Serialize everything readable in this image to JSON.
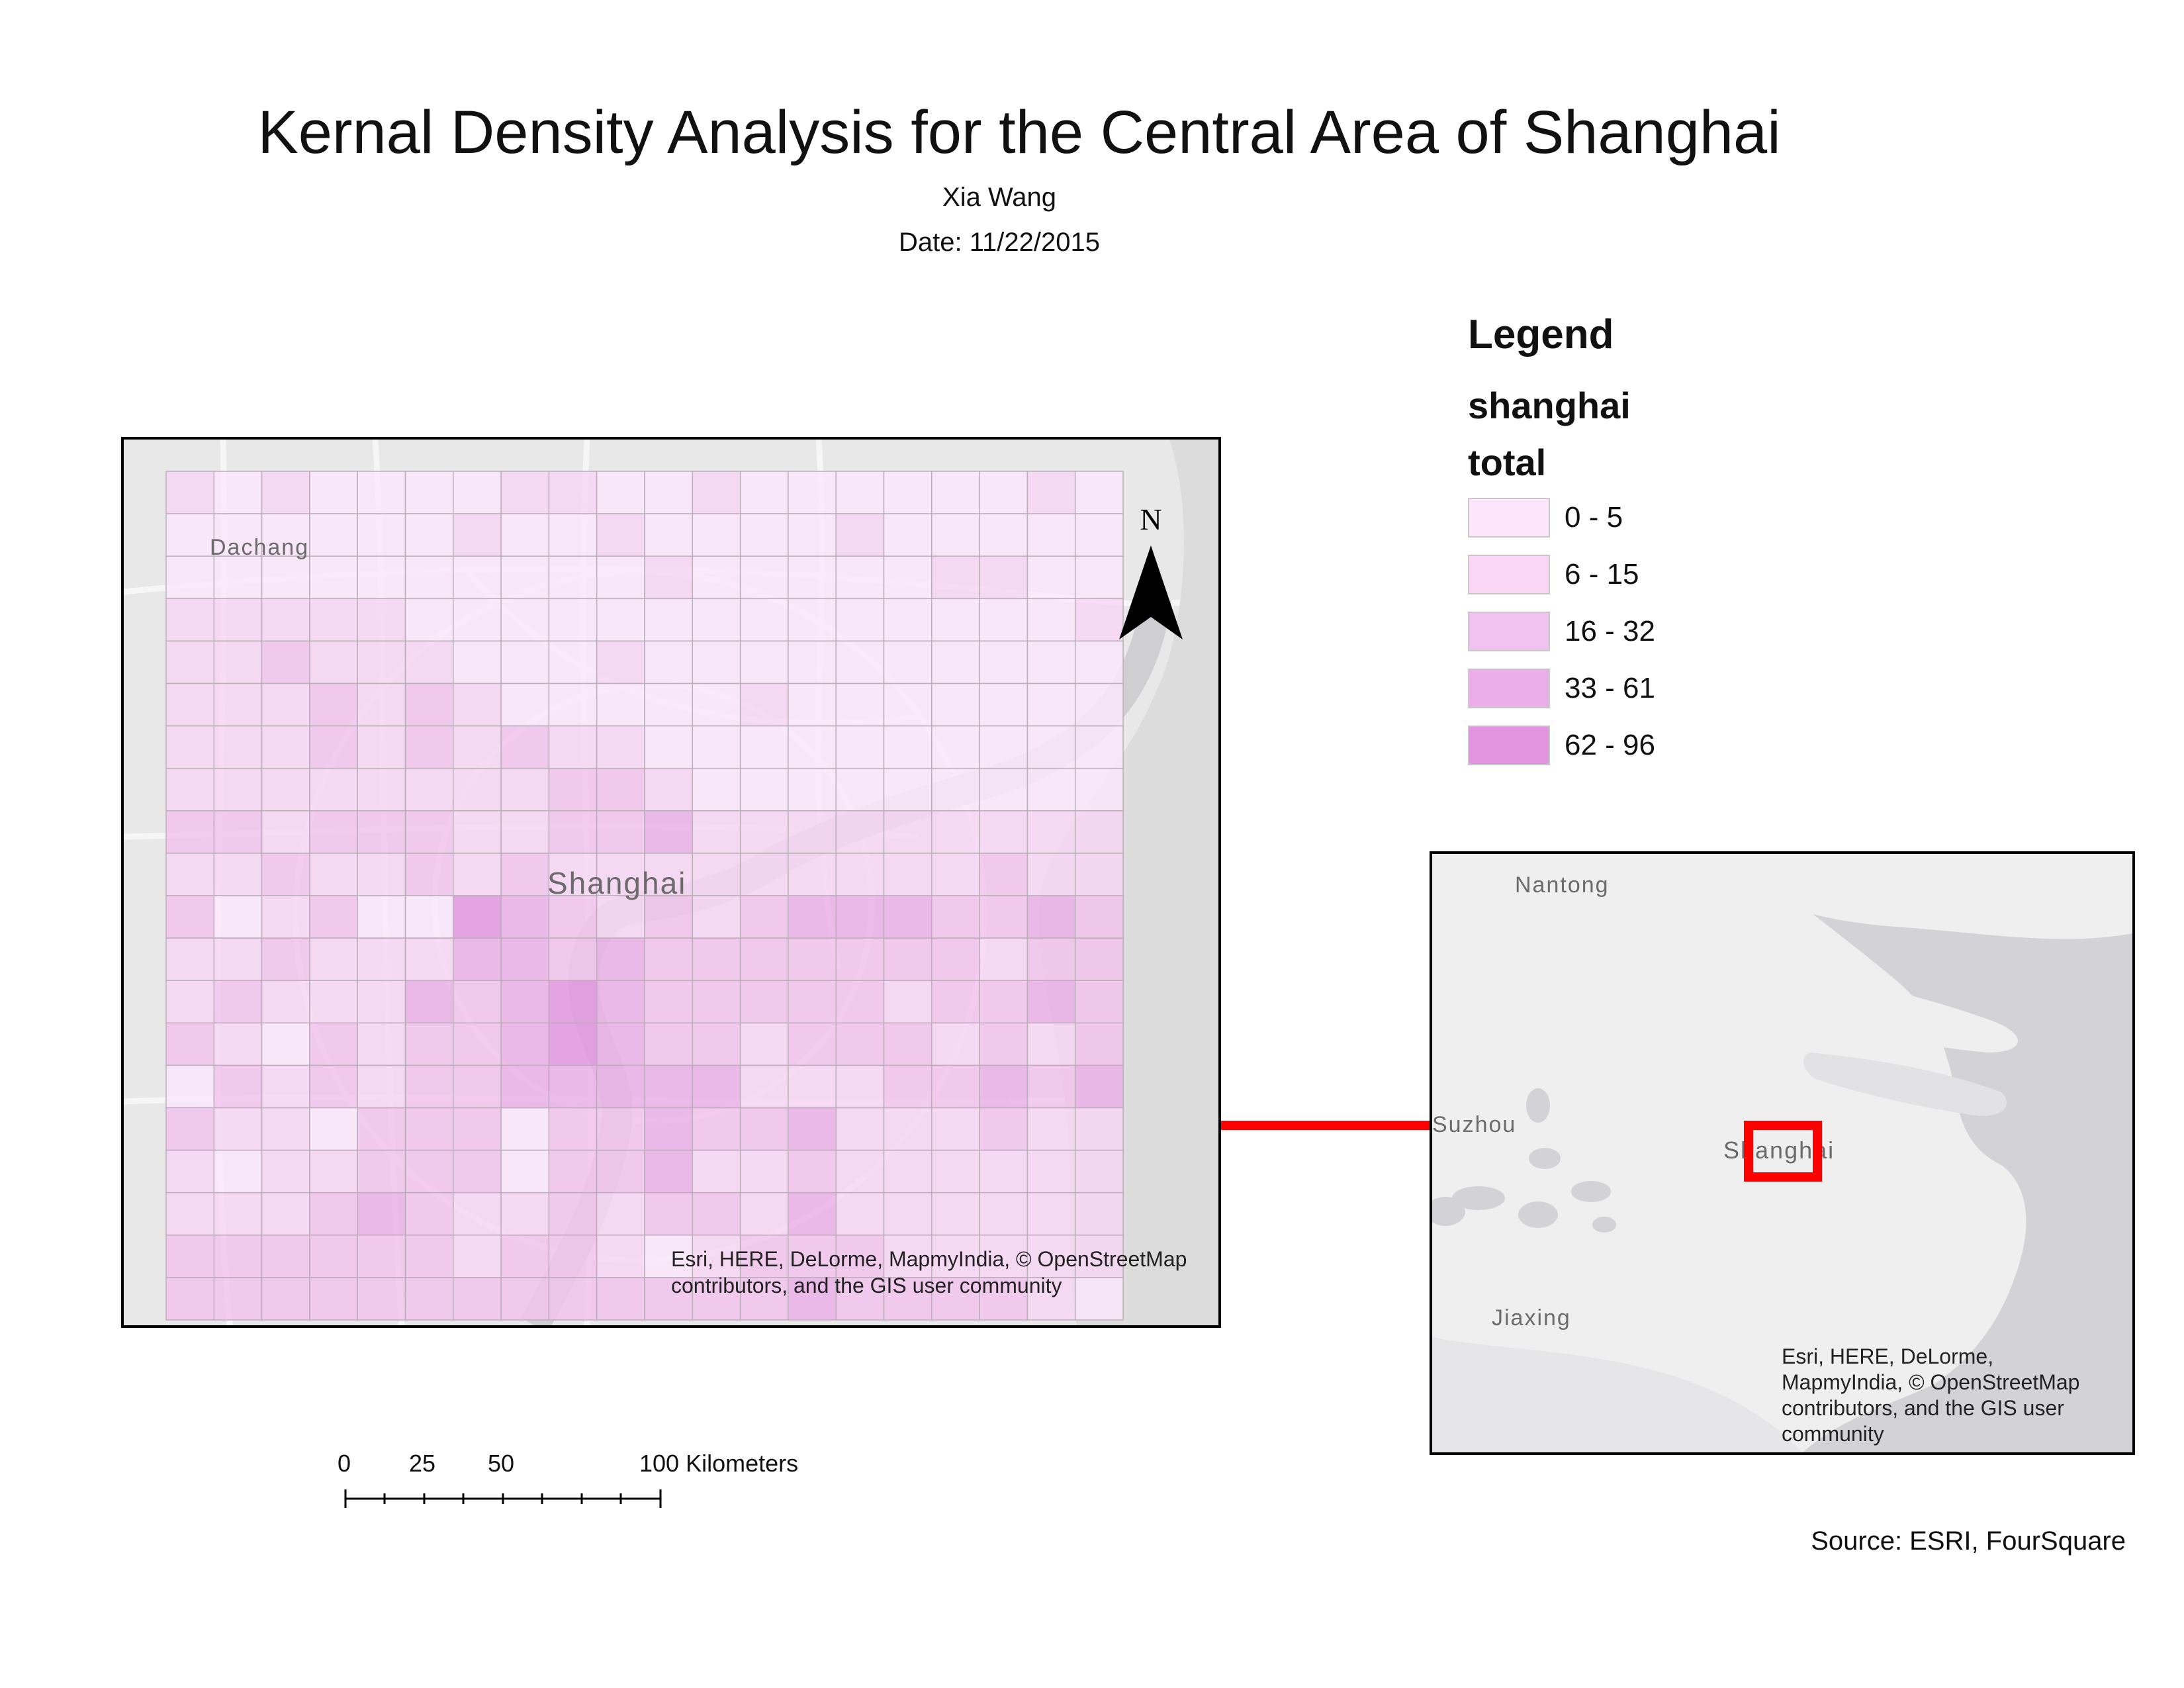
{
  "header": {
    "title": "Kernal Density Analysis for the Central Area of Shanghai",
    "author": "Xia Wang",
    "date": "Date: 11/22/2015"
  },
  "legend": {
    "title": "Legend",
    "layer": "shanghai",
    "field": "total",
    "classes": [
      {
        "label": "0 - 5",
        "color": "#fbe6fb"
      },
      {
        "label": "6 - 15",
        "color": "#f8d6f4"
      },
      {
        "label": "16 - 32",
        "color": "#f2c2ee"
      },
      {
        "label": "33 - 61",
        "color": "#ecaee8"
      },
      {
        "label": "62 - 96",
        "color": "#e394e1"
      }
    ]
  },
  "main_map": {
    "place_labels": [
      "Dachang",
      "Shanghai"
    ],
    "north_arrow": "N",
    "credit_line1": "Esri, HERE, DeLorme, MapmyIndia, © OpenStreetMap",
    "credit_line2": "contributors, and the GIS user community",
    "grid_classes": [
      [
        1,
        0,
        1,
        0,
        0,
        0,
        0,
        1,
        1,
        0,
        0,
        1,
        0,
        0,
        0,
        0,
        0,
        0,
        1,
        0
      ],
      [
        0,
        0,
        0,
        0,
        0,
        0,
        1,
        0,
        0,
        1,
        0,
        0,
        0,
        0,
        1,
        0,
        0,
        0,
        0,
        0
      ],
      [
        0,
        0,
        0,
        0,
        0,
        0,
        0,
        0,
        0,
        0,
        1,
        0,
        0,
        0,
        0,
        0,
        1,
        1,
        0,
        0
      ],
      [
        1,
        1,
        1,
        1,
        1,
        0,
        0,
        0,
        0,
        0,
        0,
        0,
        0,
        0,
        0,
        0,
        0,
        0,
        0,
        1
      ],
      [
        1,
        1,
        2,
        1,
        1,
        1,
        0,
        0,
        0,
        1,
        0,
        0,
        0,
        0,
        0,
        0,
        0,
        0,
        0,
        0
      ],
      [
        1,
        1,
        1,
        2,
        1,
        2,
        1,
        0,
        0,
        0,
        0,
        0,
        1,
        0,
        0,
        0,
        0,
        0,
        0,
        0
      ],
      [
        1,
        1,
        1,
        2,
        1,
        2,
        1,
        2,
        1,
        1,
        0,
        0,
        0,
        0,
        0,
        0,
        0,
        0,
        0,
        0
      ],
      [
        1,
        1,
        1,
        1,
        1,
        1,
        1,
        1,
        2,
        2,
        1,
        0,
        0,
        0,
        0,
        0,
        0,
        0,
        0,
        0
      ],
      [
        2,
        2,
        1,
        2,
        2,
        2,
        1,
        1,
        2,
        2,
        3,
        1,
        1,
        1,
        1,
        1,
        1,
        1,
        1,
        1
      ],
      [
        1,
        1,
        2,
        1,
        1,
        2,
        1,
        2,
        1,
        1,
        1,
        1,
        1,
        1,
        1,
        1,
        1,
        2,
        1,
        1
      ],
      [
        2,
        0,
        1,
        2,
        0,
        0,
        4,
        3,
        2,
        1,
        2,
        1,
        2,
        3,
        3,
        3,
        2,
        2,
        3,
        2
      ],
      [
        1,
        1,
        2,
        1,
        1,
        1,
        3,
        3,
        2,
        3,
        2,
        2,
        2,
        2,
        2,
        2,
        2,
        1,
        2,
        2
      ],
      [
        1,
        2,
        1,
        1,
        1,
        3,
        2,
        3,
        4,
        3,
        2,
        2,
        2,
        2,
        2,
        1,
        2,
        2,
        3,
        2
      ],
      [
        2,
        1,
        0,
        2,
        1,
        2,
        2,
        3,
        4,
        3,
        2,
        2,
        1,
        2,
        2,
        2,
        1,
        2,
        1,
        2
      ],
      [
        0,
        2,
        1,
        2,
        1,
        2,
        2,
        3,
        3,
        3,
        3,
        3,
        1,
        1,
        1,
        2,
        2,
        3,
        2,
        3
      ],
      [
        2,
        1,
        1,
        0,
        2,
        2,
        2,
        0,
        2,
        2,
        3,
        2,
        2,
        3,
        1,
        1,
        1,
        2,
        1,
        1
      ],
      [
        1,
        0,
        1,
        1,
        2,
        2,
        2,
        0,
        2,
        2,
        3,
        1,
        1,
        2,
        1,
        1,
        1,
        1,
        1,
        1
      ],
      [
        1,
        1,
        1,
        2,
        3,
        2,
        1,
        1,
        2,
        1,
        2,
        2,
        1,
        3,
        1,
        1,
        1,
        1,
        1,
        1
      ],
      [
        2,
        2,
        2,
        2,
        2,
        2,
        1,
        2,
        2,
        1,
        0,
        1,
        2,
        2,
        2,
        1,
        1,
        1,
        1,
        1
      ],
      [
        2,
        2,
        2,
        2,
        2,
        2,
        2,
        2,
        2,
        2,
        2,
        2,
        2,
        3,
        2,
        2,
        2,
        2,
        1,
        0
      ]
    ]
  },
  "inset_map": {
    "place_labels": [
      "Nantong",
      "Suzhou",
      "Shanghai",
      "Jiaxing"
    ],
    "credit_line1": "Esri, HERE, DeLorme,",
    "credit_line2": "MapmyIndia, © OpenStreetMap",
    "credit_line3": "contributors, and the GIS user",
    "credit_line4": "community",
    "highlight_color": "#ff0000"
  },
  "scale_bar": {
    "labels": [
      "0",
      "25",
      "50",
      "100 Kilometers"
    ]
  },
  "source": "Source: ESRI, FourSquare"
}
